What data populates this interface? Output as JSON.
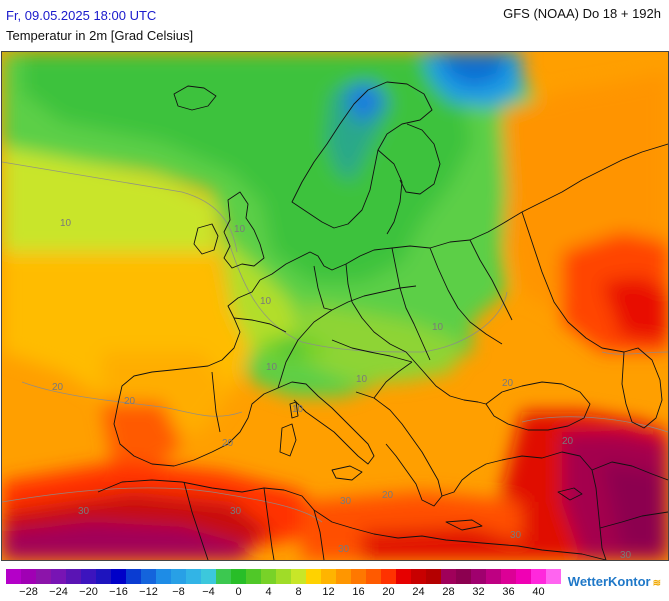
{
  "header": {
    "valid_time": "Fr, 09.05.2025 18:00 UTC",
    "field_name": "Temperatur in 2m [Grad Celsius]",
    "model_run": "GFS (NOAA) Do 18 + 192h"
  },
  "legend": {
    "colors": [
      "#b400c8",
      "#a000b4",
      "#8c14aa",
      "#7814b4",
      "#5a14b4",
      "#3c14be",
      "#1e14be",
      "#0000c8",
      "#0a3cd2",
      "#1464dc",
      "#1e8ce6",
      "#28a0e6",
      "#32b4e6",
      "#3cc8dc",
      "#3cc850",
      "#28be28",
      "#50c828",
      "#78d228",
      "#a0dc28",
      "#c8e628",
      "#ffd200",
      "#ffb400",
      "#ff9600",
      "#ff7800",
      "#ff5a00",
      "#ff3200",
      "#e60000",
      "#c80000",
      "#b40000",
      "#a0005a",
      "#8c0050",
      "#a0006e",
      "#be0082",
      "#dc0096",
      "#f000b4",
      "#ff28dc",
      "#ff64f0"
    ],
    "tick_labels": [
      "−28",
      "−24",
      "−20",
      "−16",
      "−12",
      "−8",
      "−4",
      "0",
      "4",
      "8",
      "12",
      "16",
      "20",
      "24",
      "28",
      "32",
      "36",
      "40"
    ]
  },
  "map": {
    "contour_labels": [
      "10",
      "10",
      "10",
      "10",
      "10",
      "10",
      "10",
      "20",
      "20",
      "20",
      "20",
      "20",
      "20",
      "30",
      "30",
      "30",
      "30",
      "30",
      "30"
    ]
  },
  "brand": {
    "name": "WetterKontor",
    "mark": "≋"
  }
}
